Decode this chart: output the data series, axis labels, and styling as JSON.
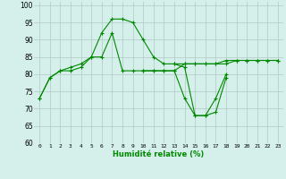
{
  "x": [
    0,
    1,
    2,
    3,
    4,
    5,
    6,
    7,
    8,
    9,
    10,
    11,
    12,
    13,
    14,
    15,
    16,
    17,
    18,
    19,
    20,
    21,
    22,
    23
  ],
  "line1": [
    73,
    79,
    81,
    81,
    82,
    85,
    92,
    96,
    96,
    95,
    90,
    85,
    83,
    83,
    83,
    83,
    83,
    83,
    84,
    84,
    84,
    84,
    84,
    84
  ],
  "line2": [
    73,
    79,
    81,
    82,
    83,
    85,
    85,
    92,
    81,
    81,
    81,
    81,
    81,
    81,
    73,
    68,
    68,
    73,
    80,
    null,
    null,
    null,
    null,
    null
  ],
  "line3": [
    null,
    null,
    null,
    null,
    null,
    null,
    null,
    null,
    null,
    null,
    null,
    null,
    null,
    83,
    82,
    68,
    68,
    69,
    79,
    null,
    null,
    null,
    null,
    null
  ],
  "line4": [
    null,
    null,
    null,
    null,
    null,
    null,
    null,
    null,
    null,
    null,
    81,
    81,
    81,
    81,
    83,
    83,
    83,
    83,
    83,
    84,
    84,
    84,
    84,
    84
  ],
  "bg_color": "#d5f0eb",
  "grid_color": "#b0c8c4",
  "line_color": "#008800",
  "xlabel": "Humidité relative (%)",
  "xlim": [
    -0.5,
    23.5
  ],
  "ylim": [
    60,
    101
  ],
  "yticks": [
    60,
    65,
    70,
    75,
    80,
    85,
    90,
    95,
    100
  ]
}
